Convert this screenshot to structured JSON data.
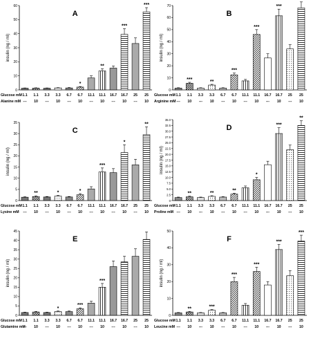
{
  "chart_data": [
    {
      "type": "bar",
      "panel": "A",
      "ylabel": "insulin (ng / ml)",
      "ylim": [
        0,
        60
      ],
      "yticks": [
        0,
        10,
        20,
        30,
        40,
        50,
        60
      ],
      "row1_label": "Glucose mM",
      "row2_label": "Alanine mM",
      "glucose": [
        "1.1",
        "1.1",
        "3.3",
        "3.3",
        "6.7",
        "6.7",
        "11.1",
        "11.1",
        "16.7",
        "16.7",
        "25",
        "25"
      ],
      "aa": [
        "---",
        "10",
        "---",
        "10",
        "---",
        "10",
        "---",
        "10",
        "---",
        "10",
        "---",
        "10"
      ],
      "values": [
        1.2,
        1.3,
        1.2,
        1.4,
        1.4,
        2.0,
        8.5,
        13.5,
        15.5,
        39.5,
        33.0,
        55.5
      ],
      "errors": [
        0.2,
        0.2,
        0.2,
        0.2,
        0.3,
        0.4,
        1.5,
        1.5,
        1.5,
        4.0,
        4.0,
        3.0
      ],
      "stars": [
        "",
        "",
        "",
        "",
        "",
        "*",
        "",
        "**",
        "",
        "***",
        "",
        "***"
      ]
    },
    {
      "type": "bar",
      "panel": "B",
      "ylabel": "insulin (ng / ml)",
      "ylim": [
        0,
        70
      ],
      "yticks": [
        0,
        10,
        20,
        30,
        40,
        50,
        60,
        70
      ],
      "row1_label": "Glucose mM",
      "row2_label": "Arginine mM",
      "glucose": [
        "1.1",
        "1.1",
        "3.3",
        "3.3",
        "6.7",
        "6.7",
        "11.1",
        "11.1",
        "16.7",
        "16.7",
        "25",
        "25"
      ],
      "aa": [
        "---",
        "10",
        "---",
        "10",
        "---",
        "10",
        "---",
        "10",
        "---",
        "10",
        "---",
        "10"
      ],
      "values": [
        1.5,
        5.5,
        1.5,
        4.0,
        1.5,
        12.5,
        7.5,
        46.0,
        26.5,
        61.5,
        34.0,
        68.0
      ],
      "errors": [
        0.3,
        0.8,
        0.3,
        0.6,
        0.3,
        1.5,
        1.2,
        4.0,
        3.5,
        5.5,
        3.5,
        5.0
      ],
      "stars": [
        "",
        "***",
        "",
        "**",
        "",
        "***",
        "",
        "***",
        "",
        "***",
        "",
        "***"
      ]
    },
    {
      "type": "bar",
      "panel": "C",
      "ylabel": "insulin (ng / ml)",
      "ylim": [
        0,
        35
      ],
      "yticks": [
        0,
        5,
        10,
        15,
        20,
        25,
        30,
        35
      ],
      "row1_label": "Glucose mM",
      "row2_label": "Lysine mM",
      "glucose": [
        "1.1",
        "1.1",
        "3.3",
        "3.3",
        "6.7",
        "6.7",
        "11.1",
        "11.1",
        "16.7",
        "16.7",
        "25",
        "25"
      ],
      "aa": [
        "---",
        "10",
        "---",
        "10",
        "---",
        "10",
        "---",
        "10",
        "---",
        "10",
        "---",
        "10"
      ],
      "values": [
        1.5,
        1.8,
        1.6,
        2.0,
        1.6,
        2.6,
        5.2,
        12.8,
        12.5,
        21.5,
        16.0,
        29.5
      ],
      "errors": [
        0.2,
        0.3,
        0.2,
        0.3,
        0.2,
        0.5,
        1.0,
        1.8,
        1.8,
        3.5,
        2.5,
        3.5
      ],
      "stars": [
        "",
        "**",
        "",
        "*",
        "",
        "*",
        "",
        "***",
        "",
        "*",
        "",
        "**"
      ]
    },
    {
      "type": "bar",
      "panel": "D",
      "ylabel": "insulin (ng / ml)",
      "ylim": [
        0,
        35
      ],
      "yticks": [
        0,
        2.5,
        5,
        7.5,
        10,
        12.5,
        15,
        17.5,
        20,
        22.5,
        25,
        27.5,
        30,
        32.5,
        35
      ],
      "yticklabels": [
        "0",
        "2.5",
        "5.0",
        "7.5",
        "10.0",
        "12.5",
        "15.0",
        "17.5",
        "20.0",
        "22.5",
        "25.0",
        "27.5",
        "30.0",
        "32.5",
        "35.0"
      ],
      "row1_label": "Glucose mM",
      "row2_label": "Proline mM",
      "glucose": [
        "1.1",
        "1.1",
        "3.3",
        "3.3",
        "6.7",
        "6.7",
        "11.1",
        "11.1",
        "16.7",
        "16.7",
        "25",
        "25"
      ],
      "aa": [
        "---",
        "10",
        "---",
        "10",
        "---",
        "10",
        "---",
        "10",
        "---",
        "10",
        "---",
        "10"
      ],
      "values": [
        1.3,
        1.6,
        1.3,
        1.8,
        1.5,
        2.8,
        5.5,
        9.0,
        15.5,
        29.0,
        22.0,
        32.5
      ],
      "errors": [
        0.2,
        0.3,
        0.2,
        0.3,
        0.2,
        0.4,
        0.8,
        1.0,
        1.5,
        2.5,
        2.0,
        2.0
      ],
      "stars": [
        "",
        "**",
        "",
        "**",
        "",
        "**",
        "",
        "*",
        "",
        "***",
        "",
        "**"
      ]
    },
    {
      "type": "bar",
      "panel": "E",
      "ylabel": "insulin (ng / ml)",
      "ylim": [
        0,
        45
      ],
      "yticks": [
        0,
        5,
        10,
        15,
        20,
        25,
        30,
        35,
        40,
        45
      ],
      "row1_label": "Glucose mM",
      "row2_label": "Glutamine mM",
      "glucose": [
        "1.1",
        "1.1",
        "3.3",
        "3.3",
        "6.7",
        "6.7",
        "11.1",
        "11.1",
        "16.7",
        "16.7",
        "25",
        "25"
      ],
      "aa": [
        "---",
        "10",
        "---",
        "10",
        "---",
        "10",
        "---",
        "10",
        "---",
        "10",
        "---",
        "10"
      ],
      "values": [
        1.5,
        1.8,
        1.5,
        2.0,
        2.0,
        3.5,
        6.5,
        15.0,
        26.0,
        28.5,
        31.5,
        40.5
      ],
      "errors": [
        0.2,
        0.3,
        0.2,
        0.3,
        0.3,
        0.5,
        1.0,
        2.0,
        3.0,
        3.0,
        4.0,
        4.0
      ],
      "stars": [
        "",
        "",
        "",
        "*",
        "",
        "***",
        "",
        "***",
        "",
        "",
        "",
        ""
      ]
    },
    {
      "type": "bar",
      "panel": "F",
      "ylabel": "insulin (ng / ml)",
      "ylim": [
        0,
        50
      ],
      "yticks": [
        0,
        10,
        20,
        30,
        40,
        50
      ],
      "row1_label": "Glucose mM",
      "row2_label": "Leucine mM",
      "glucose": [
        "1.1",
        "1.1",
        "3.3",
        "3.3",
        "6.7",
        "6.7",
        "11.1",
        "11.1",
        "16.7",
        "16.7",
        "25",
        "25"
      ],
      "aa": [
        "---",
        "10",
        "---",
        "10",
        "---",
        "10",
        "---",
        "10",
        "---",
        "10",
        "---",
        "10"
      ],
      "values": [
        1.5,
        2.0,
        1.5,
        3.0,
        1.5,
        20.0,
        6.0,
        26.0,
        18.0,
        39.0,
        23.5,
        44.0
      ],
      "errors": [
        0.2,
        0.3,
        0.2,
        0.4,
        0.2,
        2.5,
        1.0,
        2.5,
        2.0,
        3.0,
        3.0,
        3.5
      ],
      "stars": [
        "",
        "**",
        "",
        "***",
        "",
        "***",
        "",
        "***",
        "",
        "***",
        "",
        "***"
      ]
    }
  ]
}
